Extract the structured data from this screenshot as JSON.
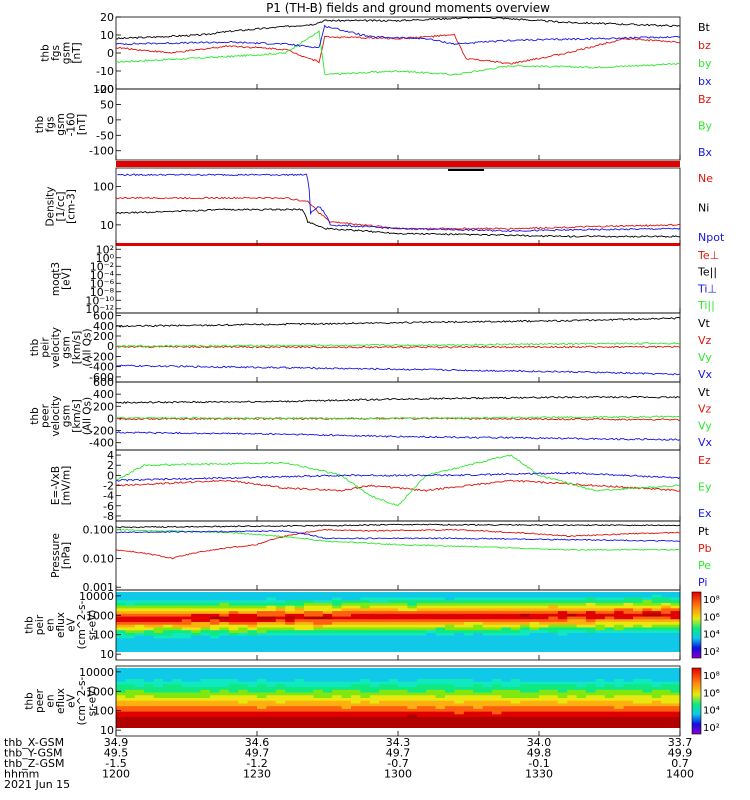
{
  "title": "P1 (TH-B) fields and ground moments overview",
  "colors": {
    "black": "#000000",
    "red": "#e0140c",
    "green": "#2ee82e",
    "blue": "#1414e6"
  },
  "x_axis": {
    "type": "time",
    "tick_labels": [
      "1200",
      "1230",
      "1300",
      "1330",
      "1400"
    ],
    "rows": [
      {
        "name": "thb_X-GSM",
        "values": [
          "34.9",
          "34.6",
          "34.3",
          "34.0",
          "33.7"
        ]
      },
      {
        "name": "thb_Y-GSM",
        "values": [
          "49.5",
          "49.7",
          "49.7",
          "49.8",
          "49.9"
        ]
      },
      {
        "name": "thb_Z-GSM",
        "values": [
          "-1.5",
          "-1.2",
          "-0.7",
          "-0.1",
          "0.7"
        ]
      },
      {
        "name": "hhmm",
        "values": [
          "1200",
          "1230",
          "1300",
          "1330",
          "1400"
        ]
      }
    ],
    "date": "2021 Jun 15"
  },
  "chart_data": [
    {
      "type": "line",
      "ylabel": [
        "thb",
        "fgs",
        "gsm",
        "[nT]"
      ],
      "yticks": [
        "20",
        "10",
        "0",
        "-10",
        "-20"
      ],
      "ylim": [
        -20,
        20
      ],
      "series": [
        {
          "name": "Bt",
          "color": "black",
          "points": [
            [
              0,
              8
            ],
            [
              0.15,
              10
            ],
            [
              0.2,
              12
            ],
            [
              0.35,
              16
            ],
            [
              0.37,
              18
            ],
            [
              0.5,
              18
            ],
            [
              0.65,
              20
            ],
            [
              0.8,
              17
            ],
            [
              1,
              15
            ]
          ]
        },
        {
          "name": "bz",
          "color": "red",
          "points": [
            [
              0,
              3
            ],
            [
              0.1,
              0
            ],
            [
              0.2,
              4
            ],
            [
              0.3,
              2
            ],
            [
              0.36,
              -5
            ],
            [
              0.37,
              9
            ],
            [
              0.5,
              8
            ],
            [
              0.6,
              10
            ],
            [
              0.62,
              -3
            ],
            [
              0.7,
              -6
            ],
            [
              0.8,
              0
            ],
            [
              0.9,
              8
            ],
            [
              1,
              6
            ]
          ]
        },
        {
          "name": "by",
          "color": "green",
          "points": [
            [
              0,
              -5
            ],
            [
              0.2,
              -2
            ],
            [
              0.3,
              0
            ],
            [
              0.36,
              12
            ],
            [
              0.37,
              -12
            ],
            [
              0.5,
              -10
            ],
            [
              0.6,
              -12
            ],
            [
              0.7,
              -7
            ],
            [
              0.85,
              -8
            ],
            [
              1,
              -6
            ]
          ]
        },
        {
          "name": "bx",
          "color": "blue",
          "points": [
            [
              0,
              5
            ],
            [
              0.2,
              6
            ],
            [
              0.3,
              5
            ],
            [
              0.36,
              3
            ],
            [
              0.37,
              15
            ],
            [
              0.45,
              9
            ],
            [
              0.55,
              8
            ],
            [
              0.6,
              5
            ],
            [
              0.7,
              7
            ],
            [
              0.85,
              8
            ],
            [
              1,
              9
            ]
          ]
        }
      ]
    },
    {
      "type": "line",
      "ylabel": [
        "thb",
        "fgs",
        "gsm",
        "-160",
        "[nT]"
      ],
      "yticks": [
        "100",
        "50",
        "0",
        "-50",
        "-100"
      ],
      "ylim": [
        -130,
        100
      ],
      "series": [
        {
          "name": "Bz",
          "color": "red",
          "points": []
        },
        {
          "name": "By",
          "color": "green",
          "points": []
        },
        {
          "name": "Bx",
          "color": "blue",
          "points": []
        }
      ]
    },
    {
      "type": "line",
      "ylabel": [
        "Density",
        "[1/cc]",
        "[cm-3]"
      ],
      "yticks": [
        "100",
        "10"
      ],
      "ylim": [
        3,
        300
      ],
      "log": true,
      "series": [
        {
          "name": "Ne",
          "color": "red",
          "points": [
            [
              0,
              50
            ],
            [
              0.3,
              50
            ],
            [
              0.34,
              40
            ],
            [
              0.36,
              20
            ],
            [
              0.38,
              12
            ],
            [
              0.5,
              8
            ],
            [
              0.7,
              8
            ],
            [
              1,
              10
            ]
          ]
        },
        {
          "name": "Ni",
          "color": "black",
          "points": [
            [
              0,
              20
            ],
            [
              0.2,
              25
            ],
            [
              0.33,
              25
            ],
            [
              0.34,
              12
            ],
            [
              0.37,
              8
            ],
            [
              0.5,
              6
            ],
            [
              0.8,
              5
            ],
            [
              1,
              5
            ]
          ]
        },
        {
          "name": "Npot",
          "color": "blue",
          "points": [
            [
              0,
              null
            ],
            [
              0.338,
              200
            ],
            [
              0.345,
              20
            ],
            [
              0.36,
              30
            ],
            [
              0.38,
              10
            ],
            [
              0.5,
              8
            ],
            [
              0.7,
              7
            ],
            [
              1,
              8
            ]
          ]
        }
      ]
    },
    {
      "type": "line",
      "ylabel": [
        "moqt3",
        "[eV]"
      ],
      "yticks": [
        "10²",
        "10⁰",
        "10⁻²",
        "10⁻⁴",
        "10⁻⁶",
        "10⁻⁸",
        "10⁻¹⁰",
        "10⁻¹²"
      ],
      "ylim": [
        -13,
        3
      ],
      "series": [
        {
          "name": "Te⊥",
          "color": "red",
          "points": []
        },
        {
          "name": "Te||",
          "color": "black",
          "points": []
        },
        {
          "name": "Ti⊥",
          "color": "blue",
          "points": []
        },
        {
          "name": "Ti||",
          "color": "green",
          "points": []
        }
      ]
    },
    {
      "type": "line",
      "ylabel": [
        "thb",
        "peir",
        "velocity",
        "gsm",
        "[km/s]",
        "(All Qs)"
      ],
      "yticks": [
        "600",
        "400",
        "200",
        "0",
        "-200",
        "-400",
        "-600"
      ],
      "ylim": [
        -700,
        650
      ],
      "series": [
        {
          "name": "Vt",
          "color": "black",
          "points": [
            [
              0,
              390
            ],
            [
              0.3,
              430
            ],
            [
              0.5,
              460
            ],
            [
              0.8,
              500
            ],
            [
              1,
              550
            ]
          ]
        },
        {
          "name": "Vz",
          "color": "red",
          "points": [
            [
              0,
              -10
            ],
            [
              0.5,
              -20
            ],
            [
              1,
              -10
            ]
          ]
        },
        {
          "name": "Vy",
          "color": "green",
          "points": [
            [
              0,
              0
            ],
            [
              0.5,
              20
            ],
            [
              1,
              60
            ]
          ]
        },
        {
          "name": "Vx",
          "color": "blue",
          "points": [
            [
              0,
              -380
            ],
            [
              0.3,
              -420
            ],
            [
              0.5,
              -450
            ],
            [
              0.8,
              -500
            ],
            [
              1,
              -550
            ]
          ]
        }
      ]
    },
    {
      "type": "line",
      "ylabel": [
        "thb",
        "peer",
        "velocity",
        "gsm",
        "[km/s]",
        "(All Qs)"
      ],
      "yticks": [
        "600",
        "400",
        "200",
        "0",
        "-200",
        "-400"
      ],
      "ylim": [
        -520,
        600
      ],
      "series": [
        {
          "name": "Vt",
          "color": "black",
          "points": [
            [
              0,
              260
            ],
            [
              0.3,
              280
            ],
            [
              0.5,
              320
            ],
            [
              0.8,
              350
            ],
            [
              1,
              350
            ]
          ]
        },
        {
          "name": "Vz",
          "color": "red",
          "points": [
            [
              0,
              -10
            ],
            [
              0.5,
              0
            ],
            [
              1,
              -20
            ]
          ]
        },
        {
          "name": "Vy",
          "color": "green",
          "points": [
            [
              0,
              10
            ],
            [
              0.5,
              0
            ],
            [
              1,
              30
            ]
          ]
        },
        {
          "name": "Vx",
          "color": "blue",
          "points": [
            [
              0,
              -230
            ],
            [
              0.3,
              -260
            ],
            [
              0.5,
              -300
            ],
            [
              0.8,
              -330
            ],
            [
              1,
              -350
            ]
          ]
        }
      ]
    },
    {
      "type": "line",
      "ylabel": [
        "E=-VxB",
        "[mV/m]"
      ],
      "yticks": [
        "4",
        "2",
        "0",
        "-2",
        "-4",
        "-6",
        "-8"
      ],
      "ylim": [
        -9,
        5
      ],
      "series": [
        {
          "name": "Ez",
          "color": "red",
          "points": [
            [
              0,
              -2
            ],
            [
              0.2,
              -1
            ],
            [
              0.3,
              -2.5
            ],
            [
              0.4,
              -3
            ],
            [
              0.45,
              -2
            ],
            [
              0.55,
              -3
            ],
            [
              0.7,
              -1
            ],
            [
              0.85,
              -2
            ],
            [
              1,
              -3
            ]
          ]
        },
        {
          "name": "Ey",
          "color": "green",
          "points": [
            [
              0,
              -1
            ],
            [
              0.05,
              2
            ],
            [
              0.3,
              2.5
            ],
            [
              0.4,
              0
            ],
            [
              0.45,
              -4
            ],
            [
              0.5,
              -6
            ],
            [
              0.55,
              0
            ],
            [
              0.7,
              4
            ],
            [
              0.75,
              0
            ],
            [
              0.85,
              -3
            ],
            [
              1,
              -2
            ]
          ]
        },
        {
          "name": "Ex",
          "color": "blue",
          "points": [
            [
              0,
              -1
            ],
            [
              0.2,
              -0.5
            ],
            [
              0.4,
              0
            ],
            [
              0.6,
              0
            ],
            [
              0.8,
              0.5
            ],
            [
              1,
              -0.5
            ]
          ]
        }
      ]
    },
    {
      "type": "line",
      "ylabel": [
        "Pressure",
        "[nPa]"
      ],
      "yticks": [
        "0.100",
        "0.010",
        "0.001"
      ],
      "ylim": [
        0.0008,
        0.2
      ],
      "log": true,
      "series": [
        {
          "name": "Pt",
          "color": "black",
          "points": [
            [
              0,
              0.12
            ],
            [
              0.4,
              0.14
            ],
            [
              0.5,
              0.15
            ],
            [
              1,
              0.14
            ]
          ]
        },
        {
          "name": "Pb",
          "color": "red",
          "points": [
            [
              0,
              0.02
            ],
            [
              0.1,
              0.01
            ],
            [
              0.25,
              0.03
            ],
            [
              0.37,
              0.1
            ],
            [
              0.45,
              0.09
            ],
            [
              0.6,
              0.1
            ],
            [
              0.8,
              0.06
            ],
            [
              1,
              0.08
            ]
          ]
        },
        {
          "name": "Pe",
          "color": "green",
          "points": [
            [
              0,
              0.1
            ],
            [
              0.2,
              0.08
            ],
            [
              0.37,
              0.04
            ],
            [
              0.5,
              0.03
            ],
            [
              0.8,
              0.02
            ],
            [
              1,
              0.02
            ]
          ]
        },
        {
          "name": "Pi",
          "color": "blue",
          "points": [
            [
              0,
              0.08
            ],
            [
              0.3,
              0.09
            ],
            [
              0.37,
              0.05
            ],
            [
              0.6,
              0.05
            ],
            [
              1,
              0.04
            ]
          ]
        }
      ]
    },
    {
      "type": "heatmap",
      "ylabel": [
        "thb",
        "peir",
        "en",
        "eflux",
        "eV",
        "(cm^2-s-",
        "sr-eV)"
      ],
      "yticks": [
        "10000",
        "1000",
        "100",
        "10"
      ],
      "ylim": [
        5,
        20000
      ],
      "log": true,
      "colorbar": {
        "labels": [
          "10⁸",
          "10⁶",
          "10⁴",
          "10²"
        ],
        "unit": "[eV/(cm^2-s-sr-eV)] (All Qs)"
      }
    },
    {
      "type": "heatmap",
      "ylabel": [
        "thb",
        "peer",
        "en",
        "eflux",
        "eV",
        "(cm^2-s-",
        "sr-eV)"
      ],
      "yticks": [
        "10000",
        "1000",
        "100",
        "10"
      ],
      "ylim": [
        5,
        20000
      ],
      "log": true,
      "colorbar": {
        "labels": [
          "10⁸",
          "10⁶",
          "10⁴",
          "10²"
        ],
        "unit": "[eV/(cm^2-s-sr-eV)] (All Qs)"
      }
    }
  ]
}
